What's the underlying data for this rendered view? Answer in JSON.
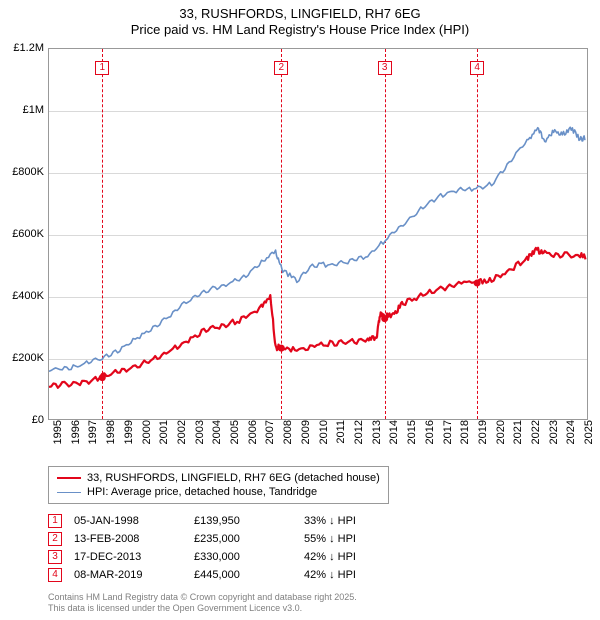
{
  "title": {
    "line1": "33, RUSHFORDS, LINGFIELD, RH7 6EG",
    "line2": "Price paid vs. HM Land Registry's House Price Index (HPI)",
    "fontsize": 13,
    "color": "#000000"
  },
  "chart": {
    "type": "line",
    "background_color": "#ffffff",
    "plot_border_color": "#999999",
    "grid_color": "#d9d9d9",
    "x": {
      "min": 1995,
      "max": 2025.5,
      "tick_step": 1,
      "labels": [
        "1995",
        "1996",
        "1997",
        "1998",
        "1999",
        "2000",
        "2001",
        "2002",
        "2003",
        "2004",
        "2005",
        "2006",
        "2007",
        "2008",
        "2009",
        "2010",
        "2011",
        "2012",
        "2013",
        "2014",
        "2015",
        "2016",
        "2017",
        "2018",
        "2019",
        "2020",
        "2021",
        "2022",
        "2023",
        "2024",
        "2025"
      ],
      "fontsize": 11,
      "rotation": -90
    },
    "y": {
      "min": 0,
      "max": 1200000,
      "tick_step": 200000,
      "labels": [
        "£0",
        "£200K",
        "£400K",
        "£600K",
        "£800K",
        "£1M",
        "£1.2M"
      ],
      "fontsize": 11
    },
    "series": [
      {
        "name": "price_paid",
        "label": "33, RUSHFORDS, LINGFIELD, RH7 6EG (detached house)",
        "color": "#e2061b",
        "line_width": 2.2,
        "points": [
          [
            1995.0,
            110000
          ],
          [
            1996.0,
            112000
          ],
          [
            1997.0,
            120000
          ],
          [
            1998.0,
            139950
          ],
          [
            1999.0,
            155000
          ],
          [
            2000.0,
            175000
          ],
          [
            2001.0,
            195000
          ],
          [
            2002.0,
            225000
          ],
          [
            2003.0,
            260000
          ],
          [
            2004.0,
            295000
          ],
          [
            2005.0,
            305000
          ],
          [
            2006.0,
            325000
          ],
          [
            2007.0,
            365000
          ],
          [
            2007.5,
            400000
          ],
          [
            2007.8,
            230000
          ],
          [
            2008.12,
            235000
          ],
          [
            2009.0,
            225000
          ],
          [
            2010.0,
            240000
          ],
          [
            2011.0,
            245000
          ],
          [
            2012.0,
            250000
          ],
          [
            2013.0,
            260000
          ],
          [
            2013.5,
            265000
          ],
          [
            2013.7,
            340000
          ],
          [
            2013.96,
            330000
          ],
          [
            2014.5,
            345000
          ],
          [
            2015.0,
            375000
          ],
          [
            2016.0,
            400000
          ],
          [
            2017.0,
            420000
          ],
          [
            2018.0,
            435000
          ],
          [
            2019.18,
            445000
          ],
          [
            2020.0,
            450000
          ],
          [
            2021.0,
            480000
          ],
          [
            2022.0,
            520000
          ],
          [
            2022.5,
            550000
          ],
          [
            2023.0,
            535000
          ],
          [
            2024.0,
            530000
          ],
          [
            2025.0,
            530000
          ],
          [
            2025.3,
            525000
          ]
        ],
        "sale_dots": [
          [
            1998.01,
            139950
          ],
          [
            2008.12,
            235000
          ],
          [
            2013.96,
            330000
          ],
          [
            2019.18,
            445000
          ]
        ]
      },
      {
        "name": "hpi",
        "label": "HPI: Average price, detached house, Tandridge",
        "color": "#6990c7",
        "line_width": 1.6,
        "points": [
          [
            1995.0,
            160000
          ],
          [
            1996.0,
            165000
          ],
          [
            1997.0,
            180000
          ],
          [
            1998.0,
            200000
          ],
          [
            1999.0,
            225000
          ],
          [
            2000.0,
            265000
          ],
          [
            2001.0,
            300000
          ],
          [
            2002.0,
            345000
          ],
          [
            2003.0,
            390000
          ],
          [
            2004.0,
            420000
          ],
          [
            2005.0,
            435000
          ],
          [
            2006.0,
            460000
          ],
          [
            2007.0,
            510000
          ],
          [
            2007.8,
            540000
          ],
          [
            2008.2,
            480000
          ],
          [
            2009.0,
            450000
          ],
          [
            2010.0,
            500000
          ],
          [
            2011.0,
            500000
          ],
          [
            2012.0,
            510000
          ],
          [
            2013.0,
            530000
          ],
          [
            2014.0,
            580000
          ],
          [
            2015.0,
            630000
          ],
          [
            2016.0,
            680000
          ],
          [
            2017.0,
            720000
          ],
          [
            2018.0,
            740000
          ],
          [
            2019.0,
            745000
          ],
          [
            2020.0,
            760000
          ],
          [
            2021.0,
            830000
          ],
          [
            2022.0,
            900000
          ],
          [
            2022.6,
            940000
          ],
          [
            2023.0,
            900000
          ],
          [
            2023.5,
            930000
          ],
          [
            2024.0,
            920000
          ],
          [
            2024.5,
            940000
          ],
          [
            2025.0,
            905000
          ],
          [
            2025.3,
            910000
          ]
        ]
      }
    ],
    "markers": [
      {
        "n": "1",
        "year": 1998.01,
        "color": "#e2061b"
      },
      {
        "n": "2",
        "year": 2008.12,
        "color": "#e2061b"
      },
      {
        "n": "3",
        "year": 2013.96,
        "color": "#e2061b"
      },
      {
        "n": "4",
        "year": 2019.18,
        "color": "#e2061b"
      }
    ]
  },
  "legend": {
    "border_color": "#999999",
    "fontsize": 11,
    "items": [
      {
        "color": "#e2061b",
        "width": 2.2,
        "label": "33, RUSHFORDS, LINGFIELD, RH7 6EG (detached house)"
      },
      {
        "color": "#6990c7",
        "width": 1.6,
        "label": "HPI: Average price, detached house, Tandridge"
      }
    ]
  },
  "sales_table": {
    "marker_color": "#e2061b",
    "fontsize": 11,
    "arrow_glyph": "↓",
    "rows": [
      {
        "n": "1",
        "date": "05-JAN-1998",
        "price": "£139,950",
        "diff": "33% ↓ HPI"
      },
      {
        "n": "2",
        "date": "13-FEB-2008",
        "price": "£235,000",
        "diff": "55% ↓ HPI"
      },
      {
        "n": "3",
        "date": "17-DEC-2013",
        "price": "£330,000",
        "diff": "42% ↓ HPI"
      },
      {
        "n": "4",
        "date": "08-MAR-2019",
        "price": "£445,000",
        "diff": "42% ↓ HPI"
      }
    ]
  },
  "footer": {
    "line1": "Contains HM Land Registry data © Crown copyright and database right 2025.",
    "line2": "This data is licensed under the Open Government Licence v3.0.",
    "color": "#808080",
    "fontsize": 9
  }
}
